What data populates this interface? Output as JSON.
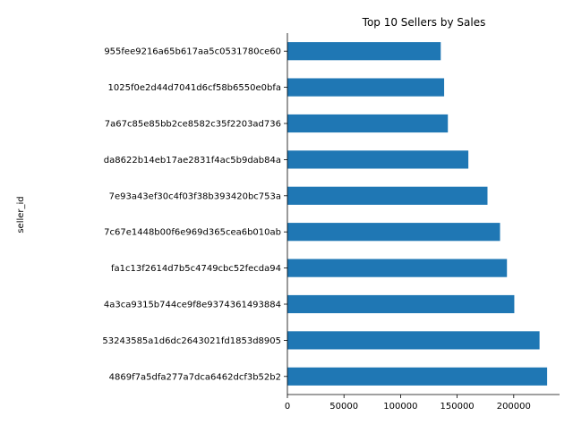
{
  "chart_data": {
    "type": "bar",
    "orientation": "horizontal",
    "title": "Top 10 Sellers by Sales",
    "xlabel": "",
    "ylabel": "seller_id",
    "categories": [
      "4869f7a5dfa277a7dca6462dcf3b52b2",
      "53243585a1d6dc2643021fd1853d8905",
      "4a3ca9315b744ce9f8e9374361493884",
      "fa1c13f2614d7b5c4749cbc52fecda94",
      "7c67e1448b00f6e969d365cea6b010ab",
      "7e93a43ef30c4f03f38b393420bc753a",
      "da8622b14eb17ae2831f4ac5b9dab84a",
      "7a67c85e85bb2ce8582c35f2203ad736",
      "1025f0e2d44d7041d6cf58b6550e0bfa",
      "955fee9216a65b617aa5c0531780ce60"
    ],
    "values": [
      229500,
      222800,
      200500,
      194000,
      187900,
      176800,
      159900,
      141800,
      138500,
      135500
    ],
    "xlim": [
      0,
      240500
    ],
    "xticks": [
      0,
      50000,
      100000,
      150000,
      200000
    ],
    "bar_color": "#1f77b4",
    "grid": false,
    "legend": "none"
  }
}
